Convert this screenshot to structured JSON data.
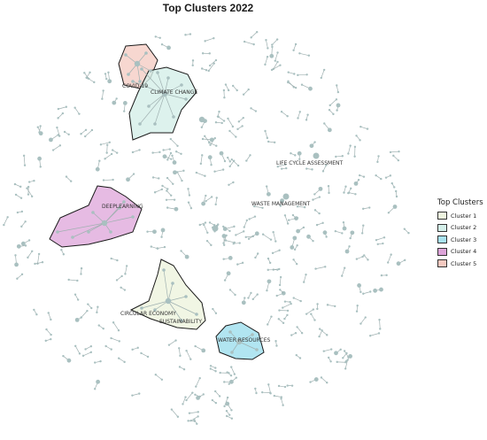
{
  "title": "Top Clusters 2022",
  "legend": {
    "title": "Top Clusters",
    "items": [
      {
        "label": "Cluster 1",
        "color": "#eef5df"
      },
      {
        "label": "Cluster 2",
        "color": "#d4efe9"
      },
      {
        "label": "Cluster 3",
        "color": "#a8e2ef"
      },
      {
        "label": "Cluster 4",
        "color": "#dda4d9"
      },
      {
        "label": "Cluster 5",
        "color": "#f4c9c0"
      }
    ]
  },
  "node_labels": [
    "COVID-19",
    "CLIMATE CHANGE",
    "LIFE CYCLE ASSESSMENT",
    "WASTE MANAGEMENT",
    "DEEPLEARNING",
    "CIRCULAR ECONOMY",
    "SUSTAINABILITY",
    "WATER RESOURCES"
  ],
  "colors": {
    "edge": "#9fb0b0",
    "node": "#a9c0c0",
    "hull_stroke": "#1a1a1a"
  }
}
